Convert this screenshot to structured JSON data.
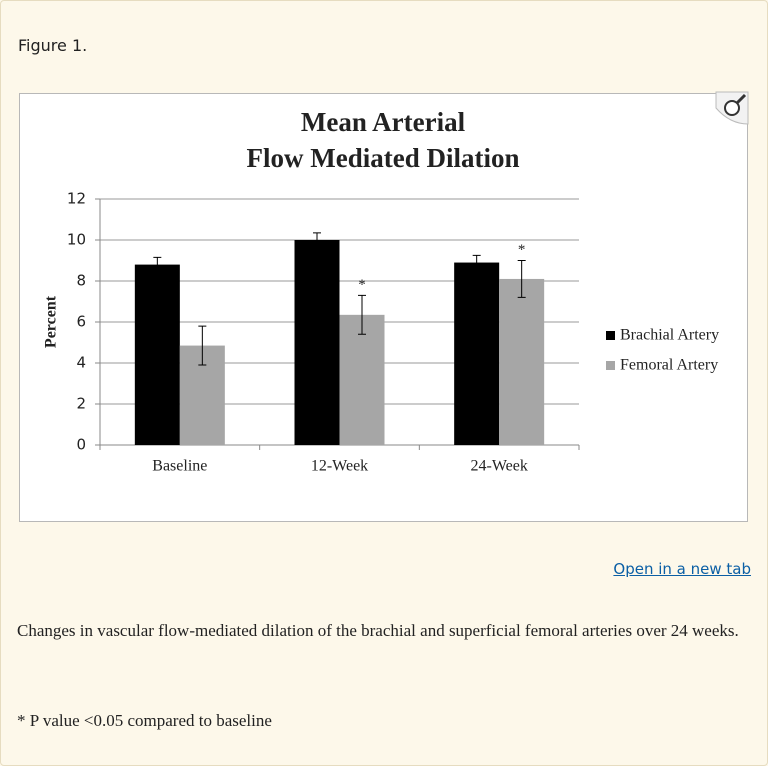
{
  "figure_label": "Figure 1.",
  "chart_data": {
    "type": "bar",
    "title": [
      "Mean Arterial",
      "Flow Mediated Dilation"
    ],
    "y_label": "Percent",
    "categories": [
      "Baseline",
      "12-Week",
      "24-Week"
    ],
    "series": [
      {
        "name": "Brachial Artery",
        "color": "#000000",
        "values": [
          8.8,
          10.0,
          8.9
        ],
        "errors": [
          0.35,
          0.35,
          0.35
        ],
        "markers": [
          null,
          null,
          null
        ]
      },
      {
        "name": "Femoral Artery",
        "color": "#a6a6a6",
        "values": [
          4.85,
          6.35,
          8.1
        ],
        "errors": [
          0.95,
          0.95,
          0.9
        ],
        "markers": [
          null,
          "*",
          "*"
        ]
      }
    ],
    "ylim": [
      0,
      12
    ],
    "yticks": [
      0,
      2,
      4,
      6,
      8,
      10,
      12
    ],
    "grid": true,
    "legend": "right"
  },
  "link": "Open in a new tab",
  "caption": "Changes in vascular flow-mediated dilation of the brachial and superficial femoral arteries over 24 weeks.",
  "footnote": "* P value <0.05 compared to baseline"
}
